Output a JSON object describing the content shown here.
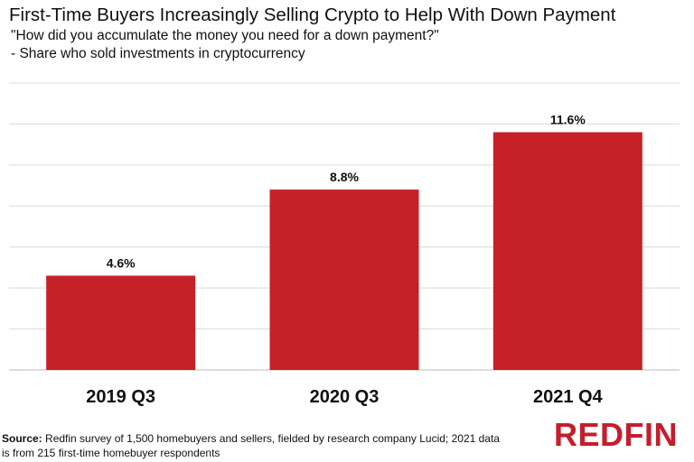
{
  "chart_data": {
    "type": "bar",
    "title": "First-Time Buyers Increasingly Selling Crypto to Help With Down Payment",
    "subtitle_line1": "\"How did you accumulate the money you need for a down payment?\"",
    "subtitle_line2": " - Share who sold investments in cryptocurrency",
    "categories": [
      "2019 Q3",
      "2020 Q3",
      "2021 Q4"
    ],
    "values": [
      4.6,
      8.8,
      11.6
    ],
    "value_labels": [
      "4.6%",
      "8.8%",
      "11.6%"
    ],
    "xlabel": "",
    "ylabel": "",
    "ylim": [
      0,
      14
    ],
    "y_gridlines": [
      0,
      2,
      4,
      6,
      8,
      10,
      12,
      14
    ],
    "grid": true,
    "legend": "none",
    "bar_color": "#c52127"
  },
  "source": {
    "label": "Source:",
    "text": " Redfin survey of 1,500 homebuyers and sellers, fielded by research company Lucid; 2021 data is from 215 first-time homebuyer respondents"
  },
  "brand": {
    "logo_text": "REDFIN",
    "color": "#c41e2c"
  }
}
